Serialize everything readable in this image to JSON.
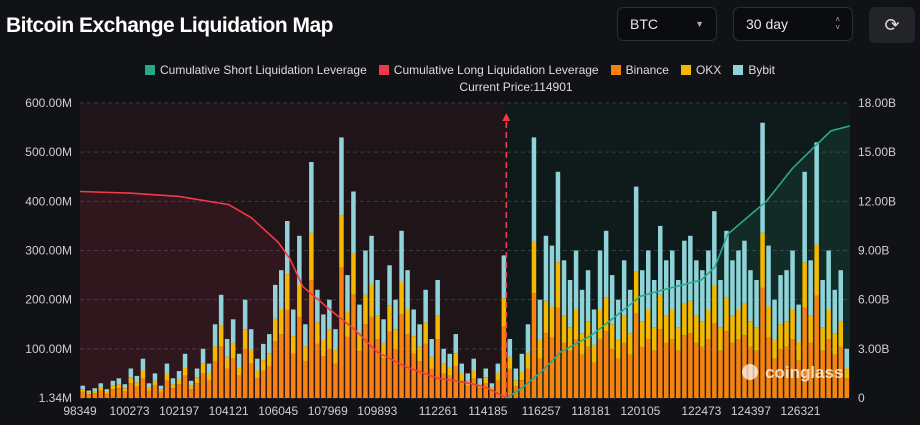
{
  "header": {
    "title": "Bitcoin Exchange Liquidation Map",
    "coin_select": "BTC",
    "period_select": "30 day",
    "refresh_icon": "refresh-icon"
  },
  "colors": {
    "short": "#26a98b",
    "long": "#f0394a",
    "binance": "#f7820f",
    "okx": "#f5b800",
    "bybit": "#8fd3d8",
    "background": "#111216"
  },
  "chart_data": {
    "type": "bar",
    "current_price_label": "Current Price:114901",
    "current_price": 114901,
    "legend": [
      "Cumulative Short Liquidation Leverage",
      "Cumulative Long Liquidation Leverage",
      "Binance",
      "OKX",
      "Bybit"
    ],
    "legend_placement": "top",
    "x_tick_labels": [
      "98349",
      "100273",
      "102197",
      "104121",
      "106045",
      "107969",
      "109893",
      "112261",
      "114185",
      "116257",
      "118181",
      "120105",
      "122473",
      "124397",
      "126321"
    ],
    "x_range": [
      98349,
      128245
    ],
    "y_left_ticks": [
      "600.00M",
      "500.00M",
      "400.00M",
      "300.00M",
      "200.00M",
      "100.00M",
      "1.34M"
    ],
    "y_left_range_M": [
      1.34,
      600
    ],
    "y_right_ticks": [
      "18.00B",
      "15.00B",
      "12.00B",
      "9.00B",
      "6.00B",
      "3.00B",
      "0"
    ],
    "y_right_range_B": [
      0,
      18
    ],
    "grid": true,
    "series": [
      {
        "name": "Binance",
        "values": [
          13,
          8,
          10,
          15,
          9,
          18,
          20,
          14,
          30,
          23,
          40,
          15,
          25,
          13,
          35,
          20,
          28,
          45,
          18,
          30,
          50,
          35,
          75,
          105,
          60,
          80,
          45,
          100,
          70,
          40,
          55,
          65,
          115,
          130,
          180,
          90,
          165,
          75,
          240,
          110,
          85,
          100,
          70,
          265,
          125,
          210,
          95,
          150,
          165,
          120,
          80,
          135,
          100,
          170,
          130,
          90,
          75,
          110,
          60,
          120,
          50,
          45,
          65,
          35,
          25,
          40,
          20,
          30,
          15,
          35,
          145,
          60,
          24,
          36,
          60,
          212,
          80,
          132,
          124,
          184,
          112,
          96,
          120,
          88,
          104,
          72,
          120,
          136,
          100,
          80,
          112,
          88,
          172,
          104,
          120,
          96,
          140,
          112,
          120,
          96,
          128,
          132,
          112,
          104,
          120,
          152,
          96,
          136,
          112,
          120,
          128,
          104,
          96,
          224,
          124,
          80,
          100,
          104,
          120,
          76,
          184,
          112,
          208,
          96,
          120,
          88,
          104,
          40
        ]
      },
      {
        "name": "OKX",
        "values": [
          5,
          3,
          4,
          6,
          4,
          7,
          8,
          6,
          12,
          9,
          16,
          6,
          10,
          5,
          14,
          8,
          11,
          18,
          7,
          12,
          20,
          14,
          30,
          42,
          24,
          32,
          18,
          40,
          28,
          16,
          22,
          26,
          46,
          52,
          72,
          36,
          66,
          30,
          96,
          44,
          34,
          40,
          28,
          106,
          50,
          84,
          38,
          60,
          66,
          48,
          32,
          54,
          40,
          68,
          52,
          36,
          30,
          44,
          24,
          48,
          20,
          18,
          26,
          14,
          10,
          16,
          8,
          12,
          6,
          14,
          58,
          24,
          12,
          18,
          30,
          106,
          40,
          66,
          62,
          92,
          56,
          48,
          60,
          44,
          52,
          36,
          60,
          68,
          50,
          40,
          56,
          44,
          86,
          52,
          60,
          48,
          70,
          56,
          60,
          48,
          64,
          66,
          56,
          52,
          60,
          76,
          48,
          68,
          56,
          60,
          64,
          52,
          48,
          112,
          62,
          40,
          50,
          52,
          60,
          38,
          92,
          56,
          104,
          48,
          60,
          44,
          52,
          20
        ]
      },
      {
        "name": "Bybit",
        "values": [
          7,
          4,
          6,
          9,
          5,
          10,
          12,
          8,
          18,
          13,
          24,
          9,
          15,
          7,
          21,
          12,
          16,
          27,
          10,
          18,
          30,
          21,
          45,
          63,
          36,
          48,
          27,
          60,
          42,
          24,
          33,
          39,
          69,
          78,
          108,
          54,
          99,
          45,
          144,
          66,
          51,
          60,
          42,
          159,
          75,
          126,
          57,
          90,
          99,
          72,
          48,
          81,
          60,
          102,
          78,
          54,
          45,
          66,
          36,
          72,
          30,
          27,
          39,
          21,
          15,
          24,
          12,
          18,
          9,
          21,
          87,
          36,
          24,
          36,
          60,
          212,
          80,
          132,
          124,
          184,
          112,
          96,
          120,
          88,
          104,
          72,
          120,
          136,
          100,
          80,
          112,
          88,
          172,
          104,
          120,
          96,
          140,
          112,
          120,
          96,
          128,
          132,
          112,
          104,
          120,
          152,
          96,
          136,
          112,
          120,
          128,
          104,
          96,
          224,
          124,
          80,
          100,
          104,
          120,
          76,
          184,
          112,
          208,
          96,
          120,
          88,
          104,
          40
        ]
      }
    ],
    "cumulative_long_B": [
      [
        98349,
        12.6
      ],
      [
        100273,
        12.5
      ],
      [
        102197,
        12.3
      ],
      [
        104121,
        11.8
      ],
      [
        105000,
        11.0
      ],
      [
        106045,
        9.5
      ],
      [
        106500,
        8.5
      ],
      [
        107000,
        6.8
      ],
      [
        107969,
        5.5
      ],
      [
        109000,
        4.2
      ],
      [
        109893,
        2.8
      ],
      [
        111000,
        1.9
      ],
      [
        112261,
        1.2
      ],
      [
        113500,
        0.9
      ],
      [
        114185,
        0.6
      ],
      [
        114901,
        0
      ]
    ],
    "cumulative_short_B": [
      [
        114901,
        0
      ],
      [
        115500,
        0.6
      ],
      [
        116257,
        1.6
      ],
      [
        117000,
        2.8
      ],
      [
        118181,
        3.8
      ],
      [
        119000,
        4.8
      ],
      [
        120105,
        6.2
      ],
      [
        121000,
        6.6
      ],
      [
        122473,
        7.2
      ],
      [
        123000,
        8.0
      ],
      [
        123500,
        10.0
      ],
      [
        124397,
        11.2
      ],
      [
        125000,
        12.0
      ],
      [
        126000,
        14.0
      ],
      [
        126321,
        14.5
      ],
      [
        127500,
        16.3
      ],
      [
        128245,
        16.6
      ]
    ],
    "watermark": "coinglass"
  }
}
